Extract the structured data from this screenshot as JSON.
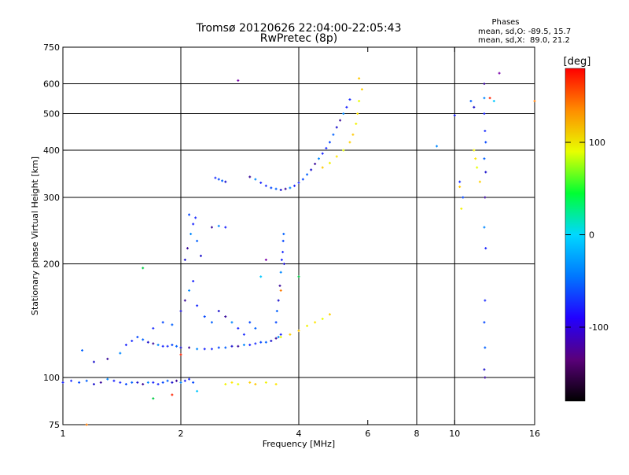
{
  "chart_data": {
    "type": "scatter",
    "title": "Tromsø 20120626 22:04:00-22:05:43",
    "subtitle": "RwPretec (8p)",
    "xlabel": "Frequency [MHz]",
    "ylabel": "Stationary phase Virtual Height [km]",
    "x_scale": "log",
    "y_scale": "log",
    "xlim": [
      1,
      16
    ],
    "ylim": [
      75,
      750
    ],
    "x_ticks": [
      1,
      2,
      4,
      6,
      8,
      10,
      16
    ],
    "y_ticks": [
      75,
      100,
      200,
      300,
      400,
      500,
      600,
      750
    ],
    "x_grid": [
      2,
      4,
      8,
      10
    ],
    "y_grid": [
      100,
      200,
      300,
      400,
      500,
      600
    ],
    "grid": true,
    "phases_box": {
      "title": "Phases",
      "line_o": "mean, sd,O: -89.5, 15.7",
      "line_x": "mean, sd,X:  89.0, 21.2"
    },
    "colorbar": {
      "label": "[deg]",
      "range": [
        -180,
        180
      ],
      "ticks": [
        100,
        0,
        -100
      ],
      "colormap": [
        "#000000",
        "#5a007a",
        "#2200ff",
        "#0077ff",
        "#00d8ff",
        "#00ff33",
        "#e8ff00",
        "#ff8c00",
        "#ff0000"
      ]
    },
    "series": [
      {
        "values_description": "O-mode echoes",
        "points": [
          [
            1.0,
            97
          ],
          [
            1.05,
            98
          ],
          [
            1.1,
            97
          ],
          [
            1.15,
            98
          ],
          [
            1.2,
            96
          ],
          [
            1.25,
            97
          ],
          [
            1.3,
            99
          ],
          [
            1.35,
            98
          ],
          [
            1.4,
            97
          ],
          [
            1.45,
            96
          ],
          [
            1.5,
            97
          ],
          [
            1.55,
            97
          ],
          [
            1.6,
            96
          ],
          [
            1.65,
            97
          ],
          [
            1.7,
            97
          ],
          [
            1.75,
            96
          ],
          [
            1.8,
            97
          ],
          [
            1.85,
            98
          ],
          [
            1.9,
            97
          ],
          [
            1.95,
            98
          ],
          [
            2.0,
            97
          ],
          [
            2.05,
            98
          ],
          [
            2.1,
            99
          ],
          [
            2.15,
            97
          ],
          [
            1.12,
            118
          ],
          [
            1.2,
            110
          ],
          [
            1.3,
            112
          ],
          [
            1.4,
            116
          ],
          [
            1.45,
            122
          ],
          [
            1.5,
            125
          ],
          [
            1.55,
            128
          ],
          [
            1.6,
            126
          ],
          [
            1.65,
            124
          ],
          [
            1.7,
            123
          ],
          [
            1.75,
            122
          ],
          [
            1.8,
            121
          ],
          [
            1.85,
            121
          ],
          [
            1.9,
            122
          ],
          [
            1.95,
            121
          ],
          [
            2.0,
            120
          ],
          [
            2.1,
            120
          ],
          [
            2.2,
            119
          ],
          [
            2.3,
            119
          ],
          [
            2.4,
            119
          ],
          [
            2.5,
            120
          ],
          [
            2.6,
            120
          ],
          [
            2.7,
            121
          ],
          [
            2.8,
            121
          ],
          [
            2.9,
            122
          ],
          [
            3.0,
            122
          ],
          [
            3.1,
            123
          ],
          [
            3.2,
            124
          ],
          [
            3.3,
            124
          ],
          [
            3.4,
            125
          ],
          [
            3.5,
            127
          ],
          [
            3.55,
            128
          ],
          [
            3.6,
            130
          ],
          [
            1.7,
            135
          ],
          [
            1.8,
            140
          ],
          [
            1.9,
            138
          ],
          [
            2.0,
            150
          ],
          [
            2.05,
            160
          ],
          [
            2.1,
            170
          ],
          [
            2.15,
            180
          ],
          [
            2.2,
            155
          ],
          [
            2.3,
            145
          ],
          [
            2.4,
            140
          ],
          [
            2.5,
            150
          ],
          [
            2.6,
            145
          ],
          [
            2.7,
            140
          ],
          [
            2.8,
            135
          ],
          [
            2.9,
            130
          ],
          [
            3.0,
            140
          ],
          [
            3.1,
            135
          ],
          [
            2.05,
            205
          ],
          [
            2.08,
            220
          ],
          [
            2.12,
            240
          ],
          [
            2.15,
            255
          ],
          [
            2.18,
            265
          ],
          [
            2.1,
            270
          ],
          [
            2.2,
            230
          ],
          [
            2.25,
            210
          ],
          [
            2.4,
            250
          ],
          [
            2.5,
            252
          ],
          [
            2.6,
            250
          ],
          [
            2.45,
            338
          ],
          [
            2.5,
            335
          ],
          [
            2.55,
            332
          ],
          [
            2.6,
            330
          ],
          [
            3.0,
            340
          ],
          [
            3.1,
            335
          ],
          [
            3.2,
            328
          ],
          [
            3.3,
            322
          ],
          [
            3.4,
            318
          ],
          [
            3.5,
            316
          ],
          [
            3.6,
            314
          ],
          [
            3.7,
            316
          ],
          [
            3.8,
            318
          ],
          [
            3.9,
            322
          ],
          [
            4.0,
            328
          ],
          [
            4.1,
            335
          ],
          [
            4.2,
            345
          ],
          [
            4.3,
            355
          ],
          [
            4.4,
            368
          ],
          [
            4.5,
            380
          ],
          [
            4.6,
            392
          ],
          [
            4.7,
            405
          ],
          [
            4.8,
            420
          ],
          [
            4.9,
            440
          ],
          [
            5.0,
            460
          ],
          [
            5.1,
            480
          ],
          [
            5.2,
            500
          ],
          [
            5.3,
            520
          ],
          [
            5.4,
            545
          ],
          [
            3.5,
            140
          ],
          [
            3.52,
            150
          ],
          [
            3.55,
            160
          ],
          [
            3.58,
            175
          ],
          [
            3.6,
            190
          ],
          [
            3.62,
            205
          ],
          [
            3.64,
            215
          ],
          [
            3.65,
            230
          ],
          [
            3.66,
            240
          ],
          [
            3.67,
            200
          ],
          [
            11.9,
            600
          ],
          [
            11.9,
            550
          ],
          [
            11.9,
            500
          ],
          [
            11.95,
            450
          ],
          [
            12.0,
            420
          ],
          [
            11.9,
            380
          ],
          [
            12.0,
            350
          ],
          [
            11.95,
            300
          ],
          [
            11.9,
            250
          ],
          [
            12.0,
            220
          ],
          [
            11.95,
            160
          ],
          [
            11.9,
            140
          ],
          [
            11.95,
            120
          ],
          [
            11.9,
            105
          ],
          [
            11.95,
            100
          ],
          [
            9.0,
            410
          ],
          [
            10.0,
            495
          ],
          [
            10.3,
            330
          ],
          [
            10.5,
            300
          ],
          [
            11.0,
            540
          ],
          [
            11.2,
            520
          ]
        ]
      },
      {
        "values_description": "X-mode echoes",
        "points": [
          [
            2.6,
            96
          ],
          [
            2.7,
            97
          ],
          [
            2.8,
            96
          ],
          [
            3.0,
            97
          ],
          [
            3.1,
            96
          ],
          [
            3.3,
            97
          ],
          [
            3.5,
            96
          ],
          [
            3.6,
            128
          ],
          [
            3.8,
            130
          ],
          [
            4.0,
            133
          ],
          [
            4.2,
            137
          ],
          [
            4.4,
            140
          ],
          [
            4.6,
            143
          ],
          [
            4.8,
            147
          ],
          [
            4.6,
            360
          ],
          [
            4.8,
            370
          ],
          [
            5.0,
            385
          ],
          [
            5.2,
            400
          ],
          [
            5.4,
            420
          ],
          [
            5.5,
            440
          ],
          [
            5.6,
            470
          ],
          [
            5.65,
            500
          ],
          [
            5.7,
            540
          ],
          [
            5.8,
            580
          ],
          [
            5.7,
            620
          ],
          [
            11.2,
            400
          ],
          [
            11.3,
            380
          ],
          [
            11.4,
            360
          ],
          [
            11.6,
            330
          ],
          [
            10.3,
            320
          ],
          [
            10.4,
            280
          ]
        ]
      },
      {
        "values_description": "Other phase echoes",
        "points": [
          [
            1.15,
            75
          ],
          [
            1.7,
            88
          ],
          [
            1.9,
            90
          ],
          [
            2.2,
            92
          ],
          [
            2.8,
            612
          ],
          [
            3.6,
            170
          ],
          [
            4.0,
            185
          ],
          [
            12.3,
            550
          ],
          [
            12.6,
            540
          ],
          [
            13.0,
            640
          ],
          [
            16.0,
            540
          ],
          [
            1.6,
            195
          ],
          [
            2.0,
            115
          ],
          [
            3.2,
            185
          ],
          [
            3.3,
            205
          ]
        ]
      }
    ]
  }
}
